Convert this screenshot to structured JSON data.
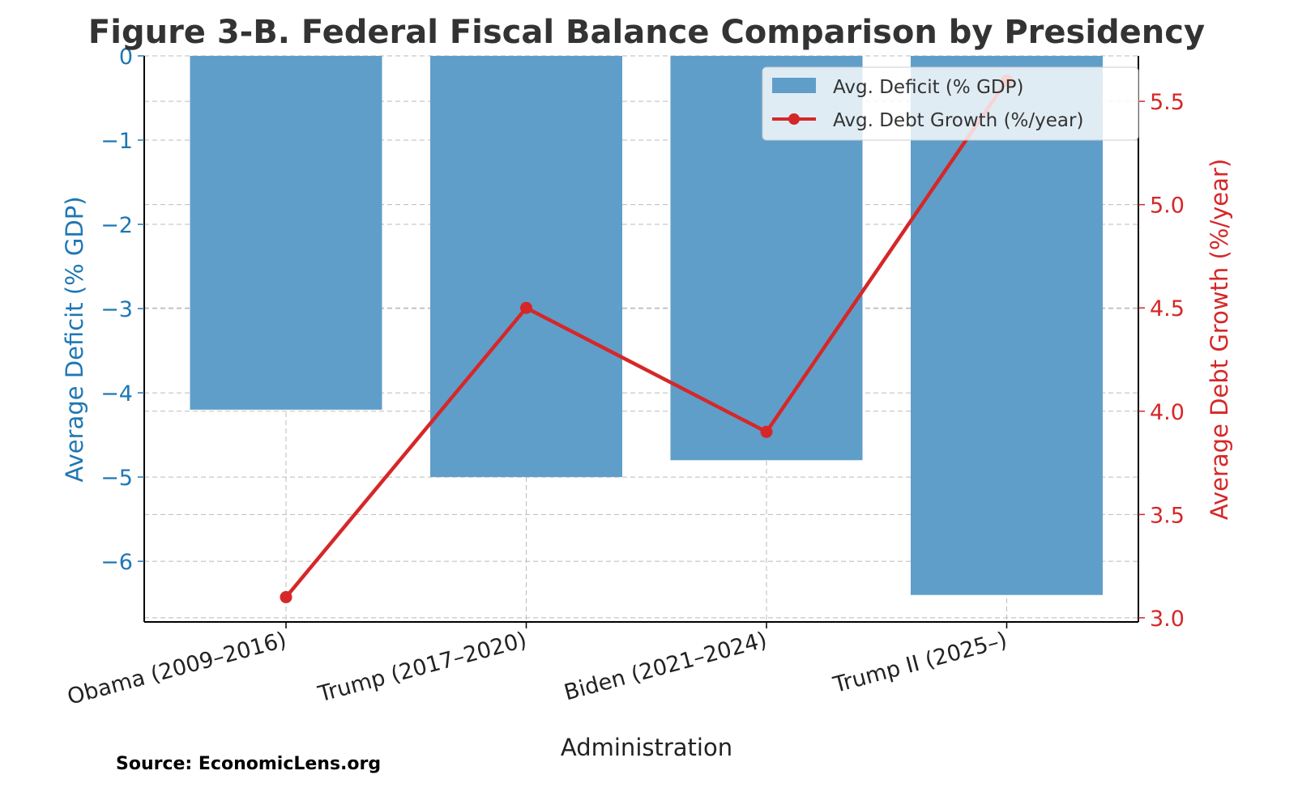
{
  "chart_data": {
    "type": "bar+line",
    "title": "Figure 3-B. Federal Fiscal Balance Comparison by Presidency",
    "xlabel": "Administration",
    "ylabel_left": "Average Deficit (% GDP)",
    "ylabel_right": "Average Debt Growth (%/year)",
    "categories": [
      "Obama (2009–2016)",
      "Trump (2017–2020)",
      "Biden (2021–2024)",
      "Trump II (2025–)"
    ],
    "series": [
      {
        "name": "Avg. Deficit (% GDP)",
        "type": "bar",
        "axis": "left",
        "color": "#5f9ec9",
        "values": [
          -4.2,
          -5.0,
          -4.8,
          -6.4
        ]
      },
      {
        "name": "Avg. Debt Growth (%/year)",
        "type": "line",
        "axis": "right",
        "color": "#d62728",
        "values": [
          3.1,
          4.5,
          3.9,
          5.6
        ]
      }
    ],
    "ylim_left": [
      -6.72,
      0
    ],
    "ylim_right": [
      2.98,
      5.72
    ],
    "yticks_left": [
      0,
      -1,
      -2,
      -3,
      -4,
      -5,
      -6
    ],
    "yticks_left_labels": [
      "0",
      "−1",
      "−2",
      "−3",
      "−4",
      "−5",
      "−6"
    ],
    "yticks_right": [
      3.0,
      3.5,
      4.0,
      4.5,
      5.0,
      5.5
    ],
    "yticks_right_labels": [
      "3.0",
      "3.5",
      "4.0",
      "4.5",
      "5.0",
      "5.5"
    ],
    "left_axis_color": "#1f77b4",
    "right_axis_color": "#d62728",
    "grid": true,
    "legend_placement": "top-right",
    "source": "Source: EconomicLens.org"
  }
}
